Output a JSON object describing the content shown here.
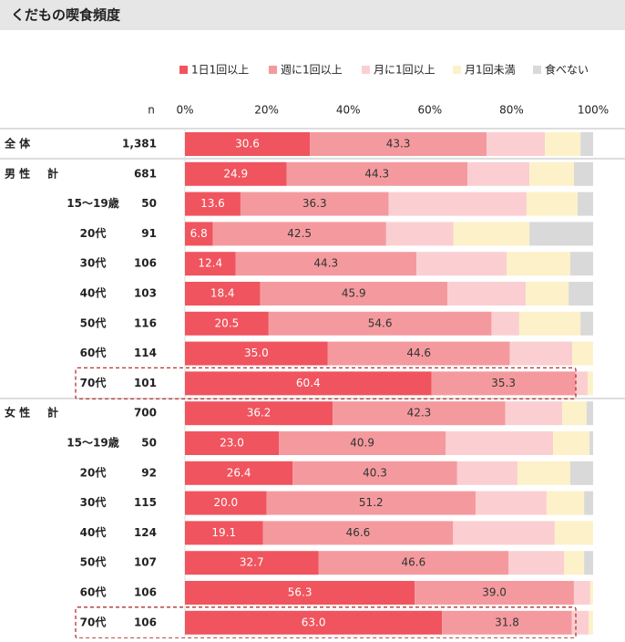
{
  "chart_data": {
    "type": "stacked-bar-horizontal",
    "title": "くだもの喫食頻度",
    "n_header": "n",
    "categories": [
      "全 体",
      "計",
      "15〜19歳",
      "20代",
      "30代",
      "40代",
      "50代",
      "60代",
      "70代",
      "計",
      "15〜19歳",
      "20代",
      "30代",
      "40代",
      "50代",
      "60代",
      "70代"
    ],
    "group_labels": [
      "男 性",
      "女 性"
    ],
    "n": [
      "1,381",
      "681",
      "50",
      "91",
      "106",
      "103",
      "116",
      "114",
      "101",
      "700",
      "50",
      "92",
      "115",
      "124",
      "107",
      "106",
      "106"
    ],
    "highlight_rows": [
      8,
      16
    ],
    "xlim": [
      0,
      100
    ],
    "xticks": [
      {
        "value": 0,
        "label": "0%"
      },
      {
        "value": 20,
        "label": "20%"
      },
      {
        "value": 40,
        "label": "40%"
      },
      {
        "value": 60,
        "label": "60%"
      },
      {
        "value": 80,
        "label": "80%"
      },
      {
        "value": 100,
        "label": "100%"
      }
    ],
    "series": [
      {
        "name": "1日1回以上",
        "color": "#f0545e",
        "values": [
          30.6,
          24.9,
          13.6,
          6.8,
          12.4,
          18.4,
          20.5,
          35.0,
          60.4,
          36.2,
          23.0,
          26.4,
          20.0,
          19.1,
          32.7,
          56.3,
          63.0
        ],
        "value_labels": [
          "30.6",
          "24.9",
          "13.6",
          "6.8",
          "12.4",
          "18.4",
          "20.5",
          "35.0",
          "60.4",
          "36.2",
          "23.0",
          "26.4",
          "20.0",
          "19.1",
          "32.7",
          "56.3",
          "63.0"
        ]
      },
      {
        "name": "週に1回以上",
        "color": "#f49a9e",
        "values": [
          43.3,
          44.3,
          36.3,
          42.5,
          44.3,
          45.9,
          54.6,
          44.6,
          35.3,
          42.3,
          40.9,
          40.3,
          51.2,
          46.6,
          46.6,
          39.0,
          31.8
        ],
        "value_labels": [
          "43.3",
          "44.3",
          "36.3",
          "42.5",
          "44.3",
          "45.9",
          "54.6",
          "44.6",
          "35.3",
          "42.3",
          "40.9",
          "40.3",
          "51.2",
          "46.6",
          "46.6",
          "39.0",
          "31.8"
        ]
      },
      {
        "name": "月に1回以上",
        "color": "#fbcfd2",
        "values": [
          14.3,
          15.2,
          33.8,
          16.5,
          22.1,
          19.2,
          6.8,
          15.3,
          3.0,
          13.9,
          26.3,
          14.8,
          17.4,
          24.9,
          13.6,
          4.0,
          4.1
        ]
      },
      {
        "name": "月1回未満",
        "color": "#fdf1c9",
        "values": [
          8.7,
          10.9,
          12.5,
          18.6,
          15.6,
          10.5,
          15.0,
          5.1,
          1.3,
          6.0,
          8.9,
          12.9,
          9.2,
          9.4,
          4.9,
          0.7,
          1.1
        ]
      },
      {
        "name": "食べない",
        "color": "#d9d9d9",
        "values": [
          3.1,
          4.7,
          3.8,
          15.6,
          5.6,
          6.0,
          3.1,
          0,
          0,
          1.6,
          0.9,
          5.6,
          2.2,
          0,
          2.2,
          0,
          0
        ]
      }
    ]
  }
}
